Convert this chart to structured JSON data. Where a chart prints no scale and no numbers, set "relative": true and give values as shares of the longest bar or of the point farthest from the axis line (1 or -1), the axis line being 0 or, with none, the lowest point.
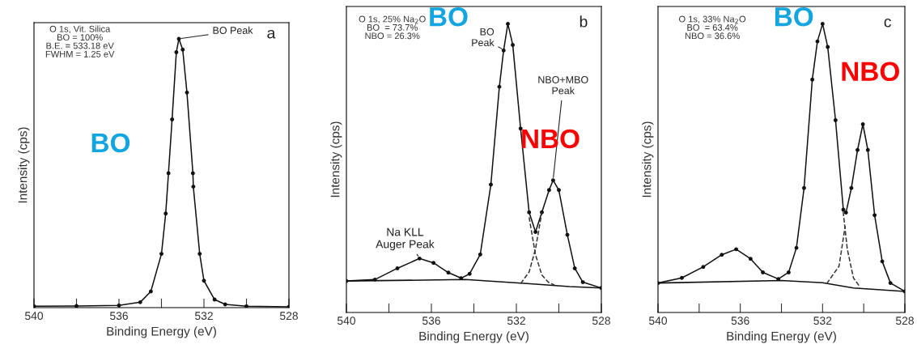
{
  "chart_data": [
    {
      "type": "line",
      "relative": true,
      "xlabel": "Binding Energy (eV)",
      "ylabel": "Intensity (cps)",
      "xlim": [
        540,
        528
      ],
      "xticks": [
        540,
        {
          "value": 538,
          "label": null
        },
        536,
        {
          "value": 534,
          "label": null
        },
        532,
        {
          "value": 530,
          "label": null
        },
        528
      ],
      "tick_labels": "x",
      "legend": false,
      "grid": false,
      "annotations": [
        "O 1s, Vit. Silica\nBO = 100%\nB.E. = 533.18 eV\nFWHM = 1.25 eV",
        {
          "text": "BO Peak",
          "x": 533.18,
          "y": 1
        },
        "a",
        "BO"
      ],
      "series": [
        {
          "color": "#111111",
          "marker": "circle",
          "line_style": "solid",
          "x": [
            540,
            538,
            536,
            535,
            534.5,
            534,
            533.8,
            533.67,
            533.5,
            533.3,
            533.18,
            533,
            532.8,
            532.52,
            532.5,
            532.2,
            532,
            531.5,
            531,
            530,
            528
          ],
          "values": [
            0.005,
            0.006,
            0.008,
            0.02,
            0.06,
            0.2,
            0.35,
            0.5,
            0.7,
            0.95,
            1,
            0.96,
            0.8,
            0.5,
            0.45,
            0.2,
            0.1,
            0.03,
            0.012,
            0.005,
            0.003
          ]
        }
      ]
    },
    {
      "type": "line",
      "relative": true,
      "xlabel": "Binding Energy (eV)",
      "ylabel": "Intensity (cps)",
      "xlim": [
        540,
        528
      ],
      "xticks": [
        540,
        {
          "value": 538,
          "label": null
        },
        536,
        {
          "value": 534,
          "label": null
        },
        532,
        {
          "value": 530,
          "label": null
        },
        528
      ],
      "tick_labels": "x",
      "legend": false,
      "grid": false,
      "annotations": [
        "O 1s, 25% Na$_{2}$O\nBO  = 73.7%\nNBO = 26.3%",
        {
          "text": "BO\nPeak",
          "x": 532.6,
          "y": 0.91
        },
        {
          "text": "NBO+MBO\nPeak",
          "x": 530.27,
          "y": 0.46
        },
        {
          "text": "Na KLL\nAuger Peak",
          "x": 536.56,
          "y": 0.19
        },
        "b",
        "BO",
        "NBO"
      ],
      "series": [
        {
          "color": "#111111",
          "marker": "circle",
          "line_style": "solid",
          "x": [
            540,
            538.66,
            537.6,
            536.56,
            535.9,
            535.2,
            534.6,
            534.2,
            533.7,
            533.2,
            532.8,
            532.6,
            532.4,
            532.17,
            531.8,
            531.4,
            531.1,
            530.8,
            530.46,
            530.27,
            530.0,
            529.6,
            529.25,
            528.87,
            528
          ],
          "values": [
            0.109,
            0.114,
            0.153,
            0.187,
            0.172,
            0.138,
            0.119,
            0.134,
            0.201,
            0.443,
            0.782,
            0.908,
            1.0,
            0.927,
            0.637,
            0.347,
            0.279,
            0.347,
            0.424,
            0.458,
            0.424,
            0.269,
            0.153,
            0.105,
            0.085
          ]
        },
        {
          "color": "#111111",
          "marker": "none",
          "line_style": "solid",
          "x": [
            540,
            534.4,
            531.5,
            529.5,
            528
          ],
          "values": [
            0.109,
            0.114,
            0.1,
            0.09,
            0.085
          ]
        },
        {
          "color": "#333333",
          "marker": "none",
          "line_style": "dashed",
          "x": [
            531.4,
            531.1,
            530.8,
            530.5,
            530.2
          ],
          "values": [
            0.33,
            0.2,
            0.13,
            0.105,
            0.095
          ]
        },
        {
          "color": "#333333",
          "marker": "none",
          "line_style": "dashed",
          "x": [
            531.8,
            531.4,
            531.1,
            530.8
          ],
          "values": [
            0.1,
            0.14,
            0.22,
            0.347
          ]
        }
      ]
    },
    {
      "type": "line",
      "relative": true,
      "xlabel": "Binding Energy (eV)",
      "ylabel": "Intensity (cps)",
      "xlim": [
        540,
        528
      ],
      "xticks": [
        540,
        {
          "value": 538,
          "label": null
        },
        536,
        {
          "value": 534,
          "label": null
        },
        532,
        {
          "value": 530,
          "label": null
        },
        528
      ],
      "tick_labels": "x",
      "legend": false,
      "grid": false,
      "annotations": [
        "O 1s, 33% Na$_{2}$O\nBO  = 63.4%\nNBO = 36.6%",
        "c",
        "BO",
        "NBO"
      ],
      "series": [
        {
          "color": "#111111",
          "marker": "circle",
          "line_style": "solid",
          "x": [
            540,
            538.84,
            537.8,
            536.9,
            536.2,
            535.5,
            534.9,
            534.15,
            533.65,
            533.27,
            532.9,
            532.5,
            532.25,
            532.0,
            531.75,
            531.37,
            530.99,
            530.86,
            530.6,
            530.3,
            530.04,
            529.8,
            529.47,
            529.1,
            528.7,
            528
          ],
          "values": [
            0.102,
            0.12,
            0.158,
            0.2,
            0.219,
            0.186,
            0.139,
            0.116,
            0.139,
            0.224,
            0.431,
            0.807,
            0.939,
            1.0,
            0.92,
            0.666,
            0.356,
            0.346,
            0.431,
            0.563,
            0.652,
            0.563,
            0.337,
            0.177,
            0.102,
            0.073
          ]
        },
        {
          "color": "#111111",
          "marker": "none",
          "line_style": "solid",
          "x": [
            540,
            534,
            532,
            530.5,
            528
          ],
          "values": [
            0.102,
            0.111,
            0.103,
            0.085,
            0.073
          ]
        },
        {
          "color": "#333333",
          "marker": "none",
          "line_style": "dashed",
          "x": [
            531.0,
            530.8,
            530.5,
            530.2
          ],
          "values": [
            0.35,
            0.22,
            0.12,
            0.09
          ]
        },
        {
          "color": "#333333",
          "marker": "none",
          "line_style": "dashed",
          "x": [
            531.8,
            531.2,
            530.9
          ],
          "values": [
            0.1,
            0.16,
            0.3
          ]
        }
      ]
    }
  ]
}
